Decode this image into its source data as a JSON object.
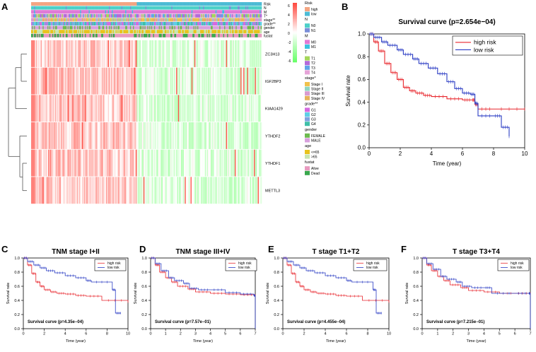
{
  "panel_labels": {
    "A": "A",
    "B": "B",
    "C": "C",
    "D": "D",
    "E": "E",
    "F": "F"
  },
  "heatmap": {
    "annotation_rows": [
      "Risk",
      "N",
      "M",
      "T*",
      "stage**",
      "grade**",
      "gender",
      "age",
      "fustat"
    ],
    "genes": [
      "ZC3H13",
      "IGF2BP3",
      "KIAA1429",
      "YTHDF2",
      "YTHDF1",
      "METTL3"
    ],
    "scale_ticks": [
      "6",
      "4",
      "2",
      "0",
      "-2",
      "-4",
      "-6"
    ],
    "legend": [
      {
        "title": "Risk",
        "items": [
          {
            "label": "high",
            "color": "#f4a582"
          },
          {
            "label": "low",
            "color": "#4dbbd5"
          }
        ]
      },
      {
        "title": "N",
        "items": [
          {
            "label": "N0",
            "color": "#4dd0c8"
          },
          {
            "label": "N1",
            "color": "#7b8ed8"
          }
        ]
      },
      {
        "title": "M",
        "items": [
          {
            "label": "M0",
            "color": "#e07ad6"
          },
          {
            "label": "M1",
            "color": "#3ac4e0"
          }
        ]
      },
      {
        "title": "T",
        "items": [
          {
            "label": "T1",
            "color": "#a5d65a"
          },
          {
            "label": "T2",
            "color": "#b36ad9"
          },
          {
            "label": "T3",
            "color": "#5fa5e8"
          },
          {
            "label": "T4",
            "color": "#e6a3d8"
          }
        ]
      },
      {
        "title": "stage*",
        "items": [
          {
            "label": "Stage I",
            "color": "#f0c14d"
          },
          {
            "label": "Stage II",
            "color": "#8fd6c2"
          },
          {
            "label": "Stage III",
            "color": "#d99bd0"
          },
          {
            "label": "Stage IV",
            "color": "#e6b35a"
          }
        ]
      },
      {
        "title": "grade**",
        "items": [
          {
            "label": "G1",
            "color": "#d56ae0"
          },
          {
            "label": "G2",
            "color": "#5ecfe6"
          },
          {
            "label": "G3",
            "color": "#7fa3e0"
          },
          {
            "label": "G4",
            "color": "#3fbfa8"
          }
        ]
      },
      {
        "title": "gender",
        "items": [
          {
            "label": "FEMALE",
            "color": "#6dbb4f"
          },
          {
            "label": "MALE",
            "color": "#d8a0dd"
          }
        ]
      },
      {
        "title": "age",
        "items": [
          {
            "label": "<=65",
            "color": "#e8c21e"
          },
          {
            "label": ">65",
            "color": "#c8e6b0"
          }
        ]
      },
      {
        "title": "fustat",
        "items": [
          {
            "label": "Alive",
            "color": "#e89abf"
          },
          {
            "label": "Dead",
            "color": "#3aa84d"
          }
        ]
      }
    ]
  },
  "chart_data": [
    {
      "type": "line",
      "panel": "B",
      "title": "Survival curve (p=2.654e−04)",
      "xlabel": "Time (year)",
      "ylabel": "Survival rate",
      "xlim": [
        0,
        10
      ],
      "ylim": [
        0,
        1
      ],
      "xticks": [
        0,
        2,
        4,
        6,
        8,
        10
      ],
      "yticks": [
        0,
        0.2,
        0.4,
        0.6,
        0.8,
        1
      ],
      "legend": [
        "high risk",
        "low risk"
      ],
      "series": [
        {
          "name": "high risk",
          "color": "#e8262c",
          "x": [
            0,
            0.3,
            0.6,
            1.0,
            1.4,
            1.8,
            2.2,
            2.6,
            3.0,
            3.5,
            4.0,
            5.0,
            6.0,
            6.6,
            6.8,
            7.0,
            8.0,
            10.0
          ],
          "y": [
            1,
            0.93,
            0.85,
            0.74,
            0.66,
            0.6,
            0.53,
            0.5,
            0.48,
            0.46,
            0.45,
            0.43,
            0.42,
            0.42,
            0.38,
            0.34,
            0.34,
            0.34
          ]
        },
        {
          "name": "low risk",
          "color": "#2b3cc4",
          "x": [
            0,
            0.3,
            0.8,
            1.2,
            1.8,
            2.2,
            2.8,
            3.2,
            3.8,
            4.4,
            5.0,
            5.5,
            6.0,
            6.5,
            6.8,
            7.0,
            8.0,
            8.5,
            9.0
          ],
          "y": [
            1,
            0.97,
            0.93,
            0.9,
            0.86,
            0.82,
            0.78,
            0.74,
            0.7,
            0.65,
            0.58,
            0.52,
            0.48,
            0.47,
            0.39,
            0.28,
            0.28,
            0.18,
            0.1
          ]
        }
      ]
    },
    {
      "type": "line",
      "panel": "C",
      "title": "TNM stage I+II",
      "annotation": "Survival curve (p=4.35e−04)",
      "xlabel": "Time (year)",
      "ylabel": "Survival rate",
      "xlim": [
        0,
        10
      ],
      "ylim": [
        0,
        1
      ],
      "xticks": [
        0,
        2,
        4,
        6,
        8,
        10
      ],
      "yticks": [
        0,
        0.2,
        0.4,
        0.6,
        0.8,
        1
      ],
      "legend": [
        "high risk",
        "low risk"
      ],
      "series": [
        {
          "name": "high risk",
          "color": "#e8262c",
          "x": [
            0,
            0.4,
            0.8,
            1.2,
            1.6,
            2.0,
            2.6,
            3.2,
            4,
            5,
            6,
            7.5,
            10
          ],
          "y": [
            1,
            0.9,
            0.78,
            0.66,
            0.6,
            0.55,
            0.52,
            0.5,
            0.49,
            0.47,
            0.46,
            0.4,
            0.38
          ]
        },
        {
          "name": "low risk",
          "color": "#2b3cc4",
          "x": [
            0,
            0.4,
            1.0,
            1.6,
            2.2,
            3.0,
            4.0,
            5.0,
            6.0,
            6.5,
            8.5,
            8.8,
            9.3
          ],
          "y": [
            1,
            0.95,
            0.9,
            0.86,
            0.82,
            0.79,
            0.75,
            0.72,
            0.68,
            0.66,
            0.55,
            0.22,
            0.22
          ]
        }
      ]
    },
    {
      "type": "line",
      "panel": "D",
      "title": "TNM stage III+IV",
      "annotation": "Survival curve (p=7.57e−01)",
      "xlabel": "Time (year)",
      "ylabel": "Survival rate",
      "xlim": [
        0,
        7
      ],
      "ylim": [
        0,
        1
      ],
      "xticks": [
        0,
        1,
        2,
        3,
        4,
        5,
        6,
        7
      ],
      "yticks": [
        0,
        0.2,
        0.4,
        0.6,
        0.8,
        1
      ],
      "legend": [
        "high risk",
        "low risk"
      ],
      "series": [
        {
          "name": "high risk",
          "color": "#e8262c",
          "x": [
            0,
            0.3,
            0.6,
            1.0,
            1.4,
            1.8,
            2.5,
            3.0,
            4.0,
            5.0,
            6.0,
            7.0
          ],
          "y": [
            1,
            0.9,
            0.8,
            0.72,
            0.66,
            0.6,
            0.56,
            0.52,
            0.5,
            0.49,
            0.48,
            0.47
          ]
        },
        {
          "name": "low risk",
          "color": "#2b3cc4",
          "x": [
            0,
            0.3,
            0.7,
            1.2,
            1.6,
            2.2,
            2.6,
            3.2,
            4.0,
            5.0,
            6.0,
            6.9,
            7.0
          ],
          "y": [
            1,
            0.92,
            0.82,
            0.72,
            0.68,
            0.64,
            0.57,
            0.55,
            0.55,
            0.51,
            0.49,
            0.47,
            0
          ]
        }
      ]
    },
    {
      "type": "line",
      "panel": "E",
      "title": "T stage T1+T2",
      "annotation": "Survival curve (p=4.455e−04)",
      "xlabel": "Time (year)",
      "ylabel": "Survival rate",
      "xlim": [
        0,
        10
      ],
      "ylim": [
        0,
        1
      ],
      "xticks": [
        0,
        2,
        4,
        6,
        8,
        10
      ],
      "yticks": [
        0,
        0.2,
        0.4,
        0.6,
        0.8,
        1
      ],
      "legend": [
        "high risk",
        "low risk"
      ],
      "series": [
        {
          "name": "high risk",
          "color": "#e8262c",
          "x": [
            0,
            0.4,
            0.8,
            1.2,
            1.6,
            2.0,
            2.6,
            3.2,
            4,
            5,
            6,
            7.5,
            10
          ],
          "y": [
            1,
            0.9,
            0.78,
            0.66,
            0.6,
            0.55,
            0.52,
            0.5,
            0.49,
            0.47,
            0.46,
            0.4,
            0.38
          ]
        },
        {
          "name": "low risk",
          "color": "#2b3cc4",
          "x": [
            0,
            0.4,
            1.0,
            1.6,
            2.2,
            3.0,
            4.0,
            5.0,
            6.0,
            6.5,
            8.5,
            8.8,
            9.3
          ],
          "y": [
            1,
            0.95,
            0.9,
            0.86,
            0.82,
            0.79,
            0.75,
            0.72,
            0.68,
            0.66,
            0.55,
            0.22,
            0.22
          ]
        }
      ]
    },
    {
      "type": "line",
      "panel": "F",
      "title": "T stage T3+T4",
      "annotation": "Survival curve (p=7.215e−01)",
      "xlabel": "Time (year)",
      "ylabel": "Survival rate",
      "xlim": [
        0,
        7
      ],
      "ylim": [
        0,
        1
      ],
      "xticks": [
        0,
        1,
        2,
        3,
        4,
        5,
        6,
        7
      ],
      "yticks": [
        0,
        0.2,
        0.4,
        0.6,
        0.8,
        1
      ],
      "legend": [
        "high risk",
        "low risk"
      ],
      "series": [
        {
          "name": "high risk",
          "color": "#e8262c",
          "x": [
            0,
            0.3,
            0.6,
            1.0,
            1.4,
            1.8,
            2.5,
            3.0,
            4.0,
            5.0,
            6.0,
            7.0
          ],
          "y": [
            1,
            0.9,
            0.82,
            0.74,
            0.68,
            0.62,
            0.58,
            0.54,
            0.52,
            0.5,
            0.5,
            0.5
          ]
        },
        {
          "name": "low risk",
          "color": "#2b3cc4",
          "x": [
            0,
            0.3,
            0.7,
            1.2,
            1.6,
            2.2,
            2.6,
            3.2,
            4.0,
            4.5,
            6.0,
            6.9,
            7.0
          ],
          "y": [
            1,
            0.92,
            0.84,
            0.74,
            0.7,
            0.66,
            0.6,
            0.58,
            0.58,
            0.5,
            0.5,
            0.5,
            0
          ]
        }
      ]
    }
  ]
}
